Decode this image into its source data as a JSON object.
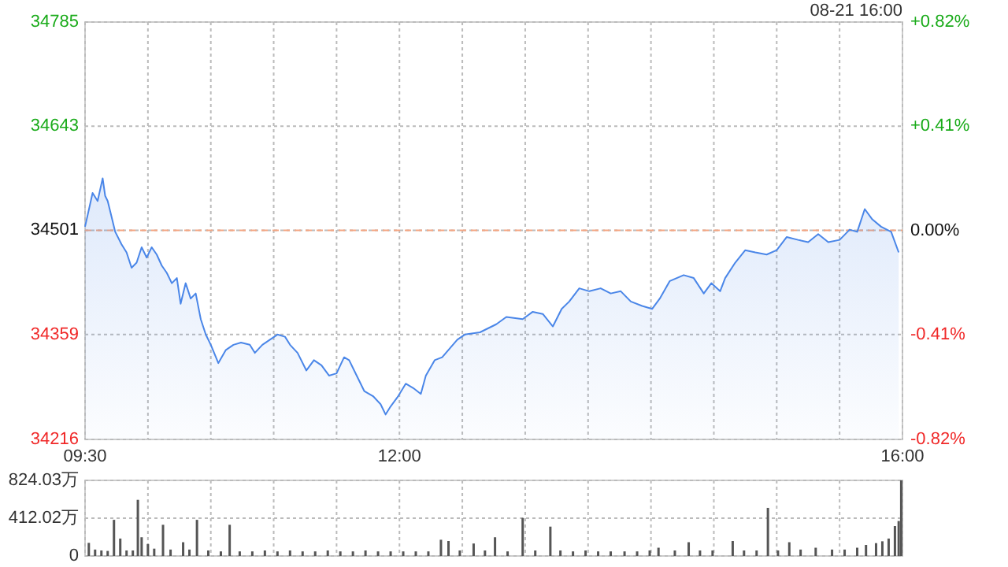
{
  "chart_data": [
    {
      "type": "area",
      "annotations": [
        "08-21 16:00"
      ],
      "xlim": [
        9.5,
        16
      ],
      "xticks": [
        {
          "value": 9.5,
          "label": "09:30"
        },
        {
          "value": 10,
          "label": null
        },
        {
          "value": 10.5,
          "label": null
        },
        {
          "value": 11,
          "label": null
        },
        {
          "value": 11.5,
          "label": null
        },
        {
          "value": 12,
          "label": "12:00"
        },
        {
          "value": 12.5,
          "label": null
        },
        {
          "value": 13,
          "label": null
        },
        {
          "value": 13.5,
          "label": null
        },
        {
          "value": 14,
          "label": null
        },
        {
          "value": 14.5,
          "label": null
        },
        {
          "value": 15,
          "label": null
        },
        {
          "value": 15.5,
          "label": null
        },
        {
          "value": 16,
          "label": "16:00"
        }
      ],
      "ylim": [
        34216,
        34785
      ],
      "yticks": [
        34216,
        34359,
        34501,
        34643,
        34785
      ],
      "y2lim": [
        -0.82,
        0.82
      ],
      "y2ticks": [
        {
          "value": -0.82,
          "label": "-0.82%"
        },
        {
          "value": -0.41,
          "label": "-0.41%"
        },
        {
          "value": 0,
          "label": "0.00%"
        },
        {
          "value": 0.41,
          "label": "+0.41%"
        },
        {
          "value": 0.82,
          "label": "+0.82%"
        }
      ],
      "grid": true,
      "ref_lines": [
        {
          "axis": "y",
          "value": 34501,
          "color": "#f4a582",
          "line_style": "dashed"
        }
      ],
      "series": [
        {
          "color": "#4a86e8",
          "x": [
            9.5,
            9.56,
            9.6,
            9.64,
            9.66,
            9.68,
            9.7,
            9.74,
            9.79,
            9.83,
            9.87,
            9.91,
            9.95,
            9.99,
            10.03,
            10.07,
            10.11,
            10.15,
            10.19,
            10.23,
            10.26,
            10.3,
            10.34,
            10.38,
            10.42,
            10.46,
            10.5,
            10.56,
            10.62,
            10.68,
            10.74,
            10.81,
            10.85,
            10.91,
            10.97,
            11.03,
            11.09,
            11.13,
            11.19,
            11.26,
            11.32,
            11.38,
            11.44,
            11.5,
            11.56,
            11.6,
            11.66,
            11.72,
            11.79,
            11.85,
            11.89,
            11.93,
            11.99,
            12.05,
            12.11,
            12.17,
            12.21,
            12.28,
            12.34,
            12.46,
            12.52,
            12.64,
            12.77,
            12.85,
            12.98,
            13.06,
            13.14,
            13.22,
            13.29,
            13.35,
            13.43,
            13.51,
            13.6,
            13.68,
            13.76,
            13.84,
            13.93,
            14.01,
            14.07,
            14.15,
            14.26,
            14.34,
            14.42,
            14.48,
            14.55,
            14.59,
            14.67,
            14.75,
            14.83,
            14.92,
            15.0,
            15.08,
            15.17,
            15.25,
            15.33,
            15.41,
            15.5,
            15.58,
            15.64,
            15.7,
            15.76,
            15.83,
            15.91,
            15.97
          ],
          "values": [
            34506,
            34552,
            34541,
            34572,
            34548,
            34541,
            34527,
            34499,
            34482,
            34471,
            34450,
            34457,
            34478,
            34464,
            34478,
            34468,
            34453,
            34443,
            34429,
            34436,
            34401,
            34429,
            34408,
            34415,
            34380,
            34359,
            34345,
            34320,
            34338,
            34345,
            34348,
            34345,
            34334,
            34345,
            34352,
            34359,
            34356,
            34345,
            34334,
            34310,
            34324,
            34317,
            34303,
            34306,
            34328,
            34324,
            34303,
            34282,
            34275,
            34264,
            34250,
            34261,
            34275,
            34292,
            34286,
            34278,
            34303,
            34324,
            34328,
            34352,
            34359,
            34362,
            34373,
            34383,
            34380,
            34390,
            34387,
            34370,
            34394,
            34404,
            34422,
            34418,
            34422,
            34415,
            34418,
            34404,
            34398,
            34394,
            34408,
            34432,
            34440,
            34436,
            34415,
            34429,
            34418,
            34436,
            34457,
            34474,
            34471,
            34468,
            34474,
            34492,
            34488,
            34485,
            34496,
            34485,
            34488,
            34502,
            34499,
            34530,
            34516,
            34506,
            34499,
            34471
          ]
        }
      ]
    },
    {
      "type": "bar",
      "tick_labels": "y",
      "grid": true,
      "xlim": [
        9.5,
        16
      ],
      "xticks": [
        {
          "value": 9.5,
          "label": null
        },
        {
          "value": 10,
          "label": null
        },
        {
          "value": 10.5,
          "label": null
        },
        {
          "value": 11,
          "label": null
        },
        {
          "value": 11.5,
          "label": null
        },
        {
          "value": 12,
          "label": null
        },
        {
          "value": 12.5,
          "label": null
        },
        {
          "value": 13,
          "label": null
        },
        {
          "value": 13.5,
          "label": null
        },
        {
          "value": 14,
          "label": null
        },
        {
          "value": 14.5,
          "label": null
        },
        {
          "value": 15,
          "label": null
        },
        {
          "value": 15.5,
          "label": null
        },
        {
          "value": 16,
          "label": null
        }
      ],
      "ylim": [
        0,
        824.03
      ],
      "yticks": [
        0,
        {
          "value": 412.02,
          "label": "412.02万"
        },
        {
          "value": 824.03,
          "label": "824.03万"
        }
      ],
      "series": [
        {
          "color": "#555555",
          "x": [
            9.53,
            9.58,
            9.63,
            9.68,
            9.73,
            9.78,
            9.83,
            9.88,
            9.92,
            9.95,
            10.0,
            10.05,
            10.12,
            10.18,
            10.28,
            10.33,
            10.39,
            10.48,
            10.58,
            10.65,
            10.73,
            10.83,
            10.93,
            11.03,
            11.13,
            11.23,
            11.33,
            11.43,
            11.53,
            11.63,
            11.73,
            11.83,
            11.93,
            12.03,
            12.13,
            12.23,
            12.33,
            12.39,
            12.48,
            12.59,
            12.68,
            12.76,
            12.86,
            12.98,
            13.08,
            13.2,
            13.28,
            13.38,
            13.48,
            13.58,
            13.68,
            13.79,
            13.89,
            13.99,
            14.06,
            14.19,
            14.3,
            14.39,
            14.49,
            14.65,
            14.74,
            14.84,
            14.93,
            15.01,
            15.1,
            15.19,
            15.31,
            15.44,
            15.54,
            15.64,
            15.71,
            15.79,
            15.84,
            15.89,
            15.94,
            15.97,
            15.99
          ],
          "values": [
            143,
            70,
            60,
            55,
            394,
            190,
            60,
            60,
            612,
            204,
            130,
            80,
            340,
            70,
            150,
            70,
            394,
            60,
            50,
            340,
            50,
            50,
            60,
            50,
            60,
            50,
            50,
            60,
            50,
            50,
            60,
            50,
            50,
            50,
            50,
            50,
            177,
            163,
            60,
            136,
            60,
            204,
            50,
            415,
            60,
            320,
            60,
            50,
            60,
            50,
            50,
            50,
            50,
            60,
            90,
            60,
            150,
            60,
            60,
            163,
            60,
            60,
            524,
            60,
            150,
            70,
            90,
            70,
            70,
            90,
            120,
            140,
            160,
            190,
            326,
            381,
            824
          ]
        }
      ]
    }
  ]
}
